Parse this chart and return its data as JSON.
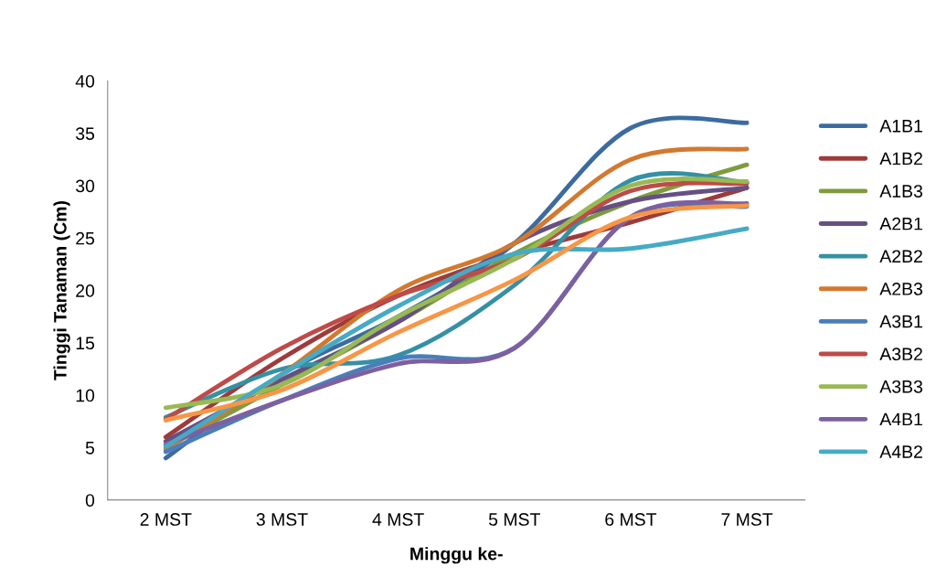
{
  "chart_data": {
    "type": "line",
    "xlabel": "Minggu ke-",
    "ylabel": "Tinggi Tanaman (Cm)",
    "categories": [
      "2 MST",
      "3 MST",
      "4 MST",
      "5 MST",
      "6 MST",
      "7 MST"
    ],
    "ylim": [
      0,
      40
    ],
    "yticks": [
      0,
      5,
      10,
      15,
      20,
      25,
      30,
      35,
      40
    ],
    "grid": false,
    "legend": "right",
    "marker": "none",
    "line_style": "solid",
    "series": [
      {
        "name": "A1B1",
        "color": "#3c6ba0",
        "values": [
          4.0,
          12.0,
          17.5,
          24.5,
          35.5,
          36.0
        ]
      },
      {
        "name": "A1B2",
        "color": "#9e3b3a",
        "values": [
          6.0,
          13.5,
          19.5,
          23.5,
          26.5,
          29.8
        ]
      },
      {
        "name": "A1B3",
        "color": "#7e9c3f",
        "values": [
          5.0,
          11.0,
          17.0,
          23.5,
          28.5,
          32.0
        ]
      },
      {
        "name": "A2B1",
        "color": "#654f84",
        "values": [
          5.6,
          11.5,
          17.0,
          24.5,
          28.5,
          29.8
        ]
      },
      {
        "name": "A2B2",
        "color": "#3590a5",
        "values": [
          7.9,
          12.5,
          13.8,
          20.5,
          30.5,
          30.3
        ]
      },
      {
        "name": "A2B3",
        "color": "#d2792f",
        "values": [
          4.8,
          12.0,
          20.0,
          24.5,
          32.5,
          33.5
        ]
      },
      {
        "name": "A3B1",
        "color": "#4a7ebb",
        "values": [
          4.6,
          9.5,
          13.5,
          14.5,
          27.0,
          28.0
        ]
      },
      {
        "name": "A3B2",
        "color": "#be4b48",
        "values": [
          7.7,
          14.5,
          19.5,
          23.0,
          29.5,
          30.2
        ]
      },
      {
        "name": "A3B3",
        "color": "#98b954",
        "values": [
          8.8,
          11.0,
          17.5,
          23.0,
          30.0,
          30.4
        ]
      },
      {
        "name": "A4B1",
        "color": "#7d60a0",
        "values": [
          5.3,
          9.5,
          13.0,
          14.5,
          27.0,
          28.3
        ]
      },
      {
        "name": "A4B2",
        "color": "#46aac5",
        "values": [
          5.1,
          12.0,
          18.5,
          23.5,
          24.0,
          25.9
        ]
      },
      {
        "color": "#f79646",
        "values": [
          7.6,
          10.5,
          16.0,
          21.0,
          27.0,
          28.1
        ]
      }
    ]
  }
}
